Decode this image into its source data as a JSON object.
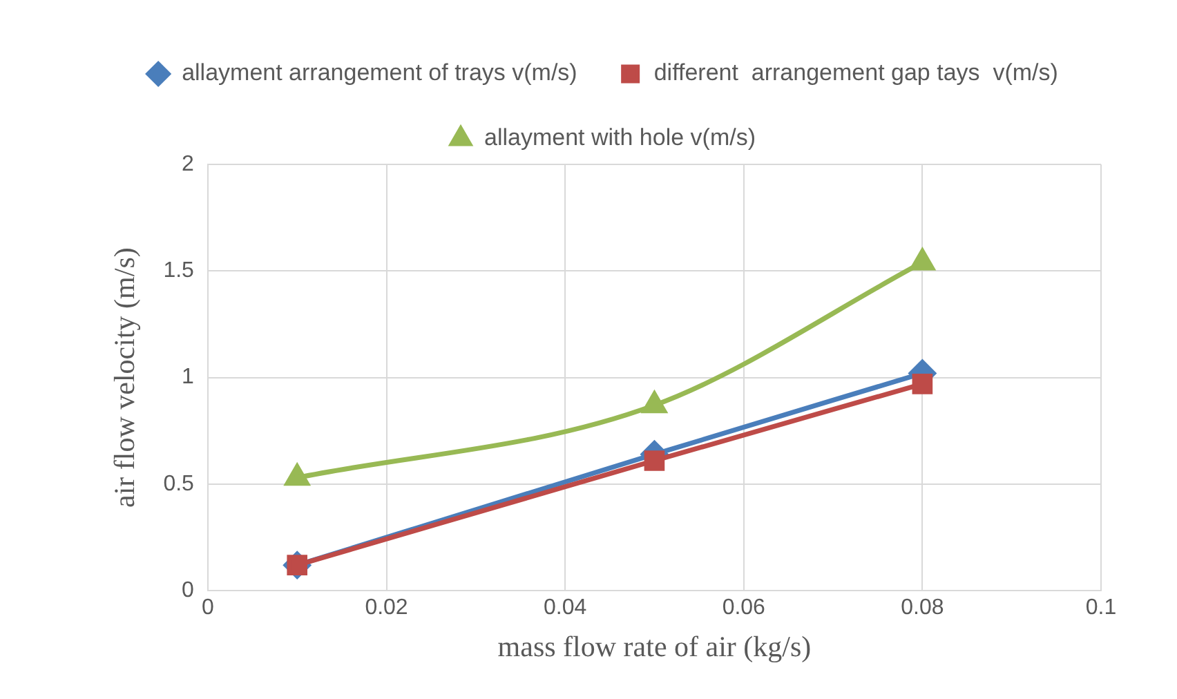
{
  "chart_data": {
    "type": "line",
    "xlabel": "mass flow rate of air (kg/s)",
    "ylabel": "air flow velocity (m/s)",
    "x": [
      0.01,
      0.05,
      0.08
    ],
    "series": [
      {
        "name": "allayment arrangement of trays v(m/s)",
        "color": "#4a7ebb",
        "marker": "diamond",
        "values": [
          0.12,
          0.64,
          1.02
        ]
      },
      {
        "name": "different  arrangement gap tays  v(m/s)",
        "color": "#be4b48",
        "marker": "square",
        "values": [
          0.12,
          0.61,
          0.97
        ]
      },
      {
        "name": "allayment with hole v(m/s)",
        "color": "#98b954",
        "marker": "triangle",
        "values": [
          0.53,
          0.87,
          1.54
        ]
      }
    ],
    "xlim": [
      0,
      0.1
    ],
    "xticks": [
      0,
      0.02,
      0.04,
      0.06,
      0.08,
      0.1
    ],
    "ylim": [
      0,
      2
    ],
    "yticks": [
      0,
      0.5,
      1,
      1.5,
      2
    ],
    "grid": true,
    "legend": "top",
    "line_style": "solid"
  }
}
